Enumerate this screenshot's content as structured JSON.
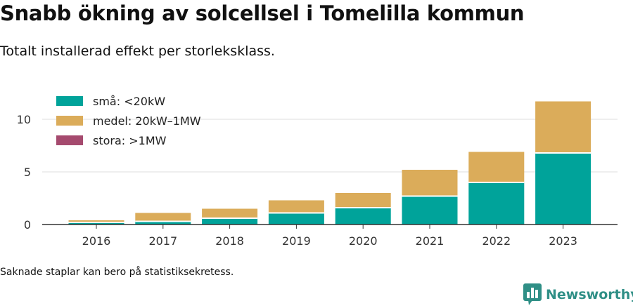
{
  "title": "Snabb ökning av solcellsel i Tomelilla kommun",
  "subtitle": "Totalt installerad effekt per storleksklass.",
  "note": "Saknade staplar kan bero på statistiksekretess.",
  "brand": {
    "name": "Newsworthy",
    "logo_icon": "bar-chart-speech-bubble-icon",
    "color": "#2f8f86"
  },
  "chart_data": {
    "type": "bar",
    "stacked": true,
    "categories": [
      "2016",
      "2017",
      "2018",
      "2019",
      "2020",
      "2021",
      "2022",
      "2023"
    ],
    "series": [
      {
        "name": "små: <20kW",
        "color": "#00a39a",
        "values": [
          0.2,
          0.3,
          0.6,
          1.1,
          1.6,
          2.7,
          4.0,
          6.8
        ]
      },
      {
        "name": "medel: 20kW–1MW",
        "color": "#dbac5a",
        "values": [
          0.2,
          0.8,
          0.9,
          1.2,
          1.4,
          2.5,
          2.9,
          4.9
        ]
      },
      {
        "name": "stora: >1MW",
        "color": "#a54a6e",
        "values": [
          0,
          0,
          0,
          0,
          0,
          0,
          0,
          0
        ]
      }
    ],
    "yticks": [
      0,
      5,
      10
    ],
    "ylim": [
      0,
      12
    ],
    "grid": true,
    "legend_position": "top-left"
  }
}
